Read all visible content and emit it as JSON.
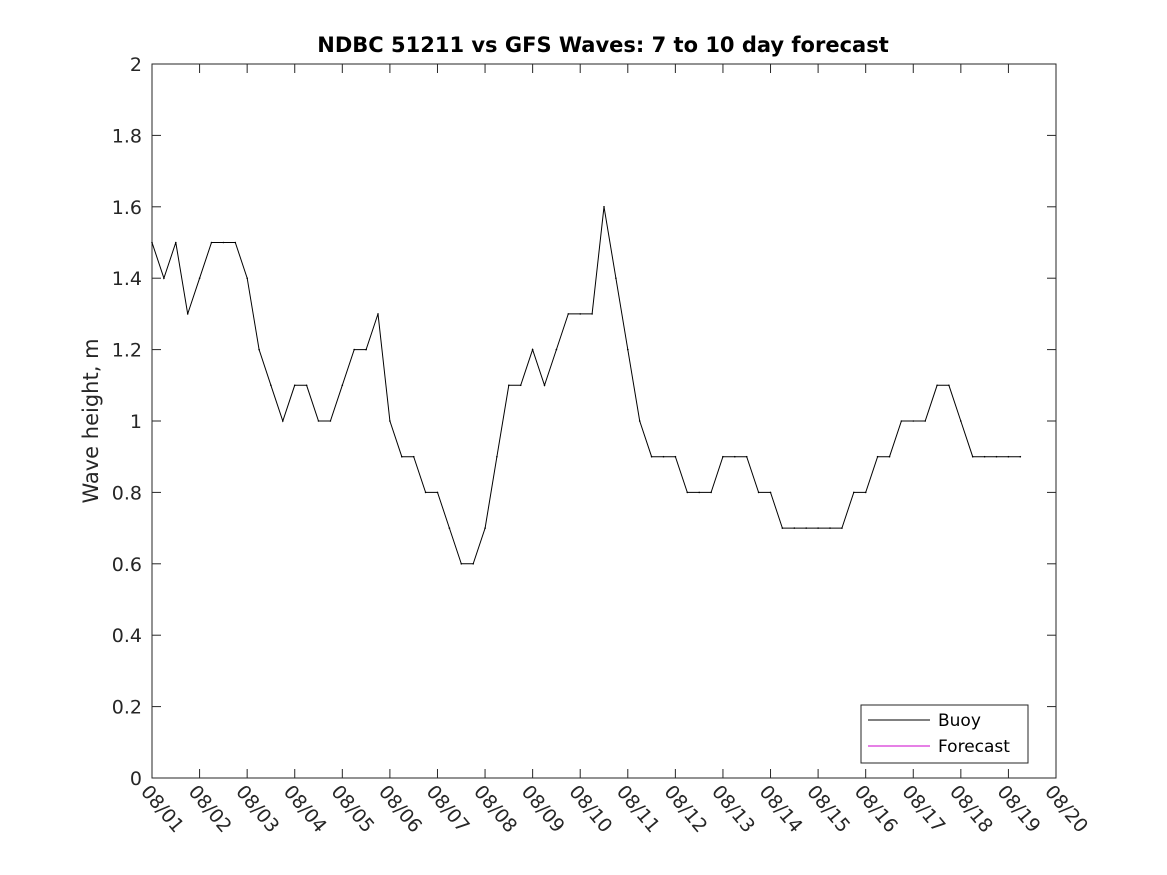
{
  "chart_data": {
    "type": "line",
    "title": "NDBC 51211 vs GFS Waves: 7 to 10 day forecast",
    "ylabel": "Wave height, m",
    "ylim": [
      0,
      2
    ],
    "yticks": [
      0,
      0.2,
      0.4,
      0.6,
      0.8,
      1,
      1.2,
      1.4,
      1.6,
      1.8,
      2
    ],
    "ytick_labels": [
      "0",
      "0.2",
      "0.4",
      "0.6",
      "0.8",
      "1",
      "1.2",
      "1.4",
      "1.6",
      "1.8",
      "2"
    ],
    "xlim": [
      "08/01",
      "08/20"
    ],
    "xtick_labels": [
      "08/01",
      "08/02",
      "08/03",
      "08/04",
      "08/05",
      "08/06",
      "08/07",
      "08/08",
      "08/09",
      "08/10",
      "08/11",
      "08/12",
      "08/13",
      "08/14",
      "08/15",
      "08/16",
      "08/17",
      "08/18",
      "08/19",
      "08/20"
    ],
    "grid": false,
    "legend_position": "bottom-right",
    "series": [
      {
        "name": "Buoy",
        "color": "#000000",
        "x": [
          "08/01 00:00",
          "08/01 06:00",
          "08/01 12:00",
          "08/01 18:00",
          "08/02 00:00",
          "08/02 06:00",
          "08/02 12:00",
          "08/02 18:00",
          "08/03 00:00",
          "08/03 06:00",
          "08/03 12:00",
          "08/03 18:00",
          "08/04 00:00",
          "08/04 06:00",
          "08/04 12:00",
          "08/04 18:00",
          "08/05 00:00",
          "08/05 06:00",
          "08/05 12:00",
          "08/05 18:00",
          "08/06 00:00",
          "08/06 06:00",
          "08/06 12:00",
          "08/06 18:00",
          "08/07 00:00",
          "08/07 06:00",
          "08/07 12:00",
          "08/07 18:00",
          "08/08 00:00",
          "08/08 06:00",
          "08/08 12:00",
          "08/08 18:00",
          "08/09 00:00",
          "08/09 06:00",
          "08/09 12:00",
          "08/09 18:00",
          "08/10 00:00",
          "08/10 06:00",
          "08/10 12:00",
          "08/10 18:00",
          "08/11 00:00",
          "08/11 06:00",
          "08/11 12:00",
          "08/11 18:00",
          "08/12 00:00",
          "08/12 06:00",
          "08/12 12:00",
          "08/12 18:00",
          "08/13 00:00",
          "08/13 06:00",
          "08/13 12:00",
          "08/13 18:00",
          "08/14 00:00",
          "08/14 06:00",
          "08/14 12:00",
          "08/14 18:00",
          "08/15 00:00",
          "08/15 06:00",
          "08/15 12:00",
          "08/15 18:00",
          "08/16 00:00",
          "08/16 06:00",
          "08/16 12:00",
          "08/16 18:00",
          "08/17 00:00",
          "08/17 06:00",
          "08/17 12:00",
          "08/17 18:00",
          "08/18 00:00",
          "08/18 06:00",
          "08/18 12:00",
          "08/18 18:00",
          "08/19 00:00",
          "08/19 06:00"
        ],
        "y": [
          1.5,
          1.4,
          1.5,
          1.3,
          1.4,
          1.5,
          1.5,
          1.5,
          1.4,
          1.2,
          1.1,
          1.0,
          1.1,
          1.1,
          1.0,
          1.0,
          1.1,
          1.2,
          1.2,
          1.3,
          1.0,
          0.9,
          0.9,
          0.8,
          0.8,
          0.7,
          0.6,
          0.6,
          0.7,
          0.9,
          1.1,
          1.1,
          1.2,
          1.1,
          1.2,
          1.3,
          1.3,
          1.3,
          1.6,
          1.4,
          1.2,
          1.0,
          0.9,
          0.9,
          0.9,
          0.8,
          0.8,
          0.8,
          0.9,
          0.9,
          0.9,
          0.8,
          0.8,
          0.7,
          0.7,
          0.7,
          0.7,
          0.7,
          0.7,
          0.8,
          0.8,
          0.9,
          0.9,
          1.0,
          1.0,
          1.0,
          1.1,
          1.1,
          1.0,
          0.9,
          0.9,
          0.9,
          0.9,
          0.9
        ]
      },
      {
        "name": "Forecast",
        "color": "#cc00cc",
        "x": [],
        "y": []
      }
    ]
  }
}
